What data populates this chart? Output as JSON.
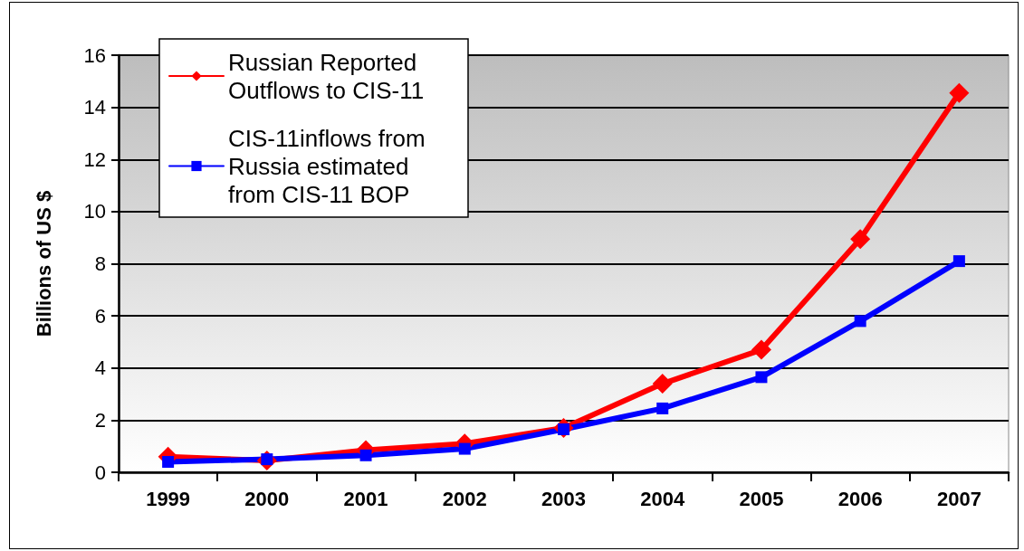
{
  "chart_data": {
    "type": "line",
    "ylabel": "Billions of US $",
    "categories": [
      "1999",
      "2000",
      "2001",
      "2002",
      "2003",
      "2004",
      "2005",
      "2006",
      "2007"
    ],
    "series": [
      {
        "name": "Russian Reported Outflows to CIS-11",
        "color": "#ff0000",
        "marker": "diamond",
        "values": [
          0.6,
          0.45,
          0.85,
          1.1,
          1.7,
          3.4,
          4.7,
          8.95,
          14.55
        ]
      },
      {
        "name": "CIS-11inflows from Russia estimated from CIS-11 BOP",
        "color": "#0000ff",
        "marker": "square",
        "values": [
          0.4,
          0.5,
          0.65,
          0.9,
          1.65,
          2.45,
          3.65,
          5.8,
          8.1
        ]
      }
    ],
    "ylim": [
      0,
      16
    ],
    "yticks": [
      0,
      2,
      4,
      6,
      8,
      10,
      12,
      14,
      16
    ],
    "grid": "y",
    "legend": "top left",
    "line_style": "solid"
  }
}
